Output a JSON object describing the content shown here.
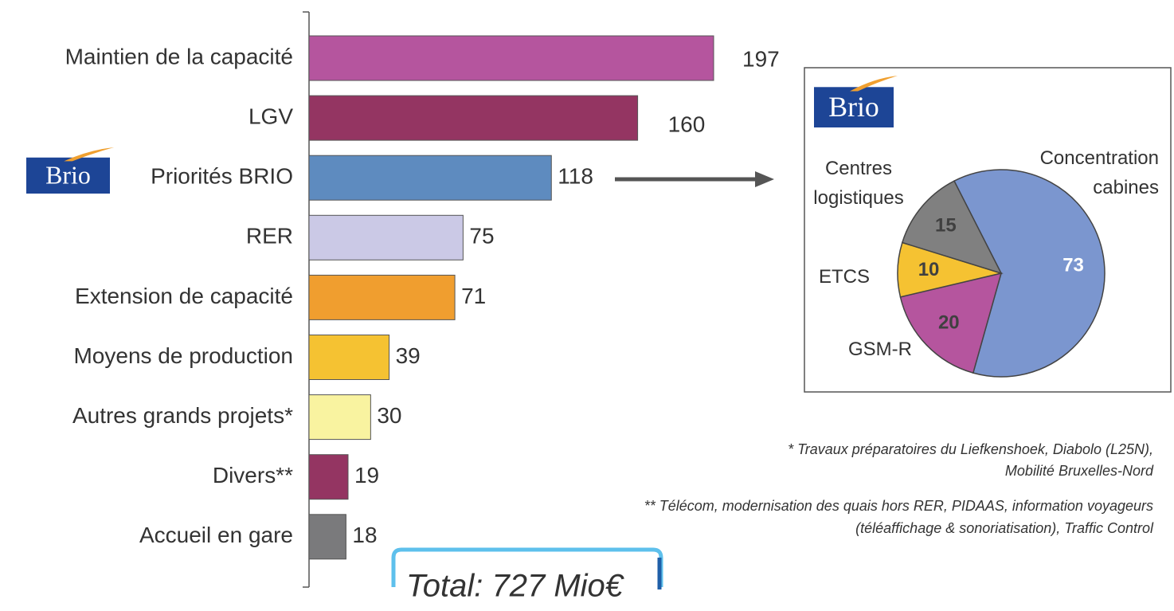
{
  "logo": "Brio",
  "chart_data": [
    {
      "type": "bar",
      "orientation": "horizontal",
      "categories": [
        "Maintien de la capacité",
        "LGV",
        "Priorités BRIO",
        "RER",
        "Extension de capacité",
        "Moyens de production",
        "Autres grands projets*",
        "Divers**",
        "Accueil en gare"
      ],
      "values": [
        197,
        160,
        118,
        75,
        71,
        39,
        30,
        19,
        18
      ],
      "colors": [
        "#b5559e",
        "#943562",
        "#5e8bbf",
        "#cbc9e6",
        "#f09e2f",
        "#f5c232",
        "#f9f3a0",
        "#943562",
        "#7a7a7c"
      ],
      "total": "Total: 727 Mio€",
      "annotations": [
        "* Travaux préparatoires du Liefkenshoek, Diabolo (L25N),",
        "Mobilité Bruxelles-Nord",
        "** Télécom, modernisation des quais hors RER, PIDAAS, information voyageurs",
        "(téléaffichage & sonoriatisation), Traffic Control"
      ]
    },
    {
      "type": "pie",
      "categories": [
        "Concentration\ncabines",
        "GSM-R",
        "ETCS",
        "Centres\nlogistiques"
      ],
      "values": [
        73,
        20,
        10,
        15
      ],
      "colors": [
        "#7b96cf",
        "#b5559e",
        "#f5c232",
        "#808080"
      ]
    }
  ]
}
